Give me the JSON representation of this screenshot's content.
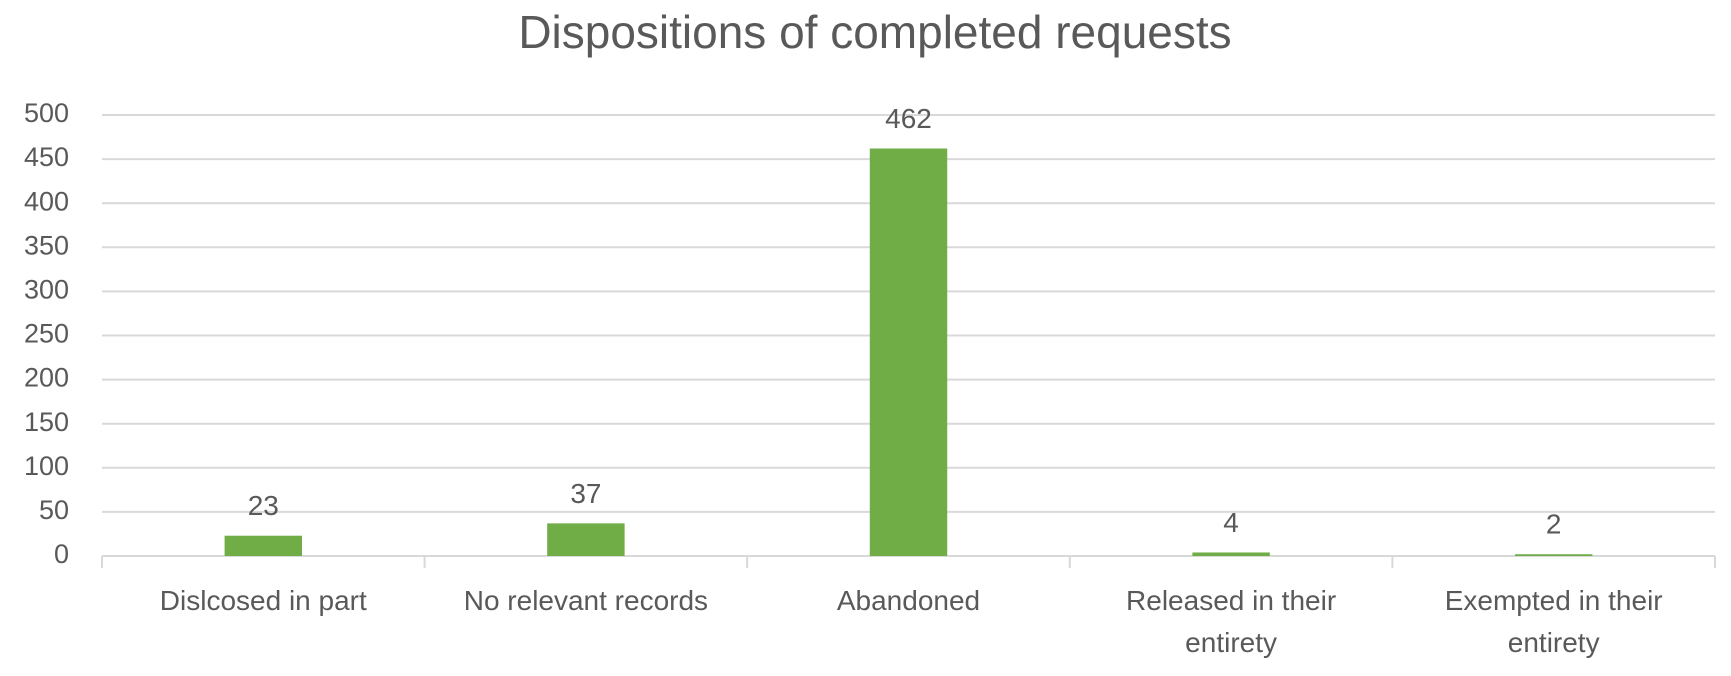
{
  "chart_data": {
    "type": "bar",
    "title": "Dispositions of completed requests",
    "categories": [
      "Dislcosed in part",
      "No relevant records",
      "Abandoned",
      "Released in their entirety",
      "Exempted in their entirety"
    ],
    "values": [
      23,
      37,
      462,
      4,
      2
    ],
    "color": "#70ad47",
    "ylim": [
      0,
      500
    ],
    "yticks": [
      0,
      50,
      100,
      150,
      200,
      250,
      300,
      350,
      400,
      450,
      500
    ],
    "grid": true
  }
}
